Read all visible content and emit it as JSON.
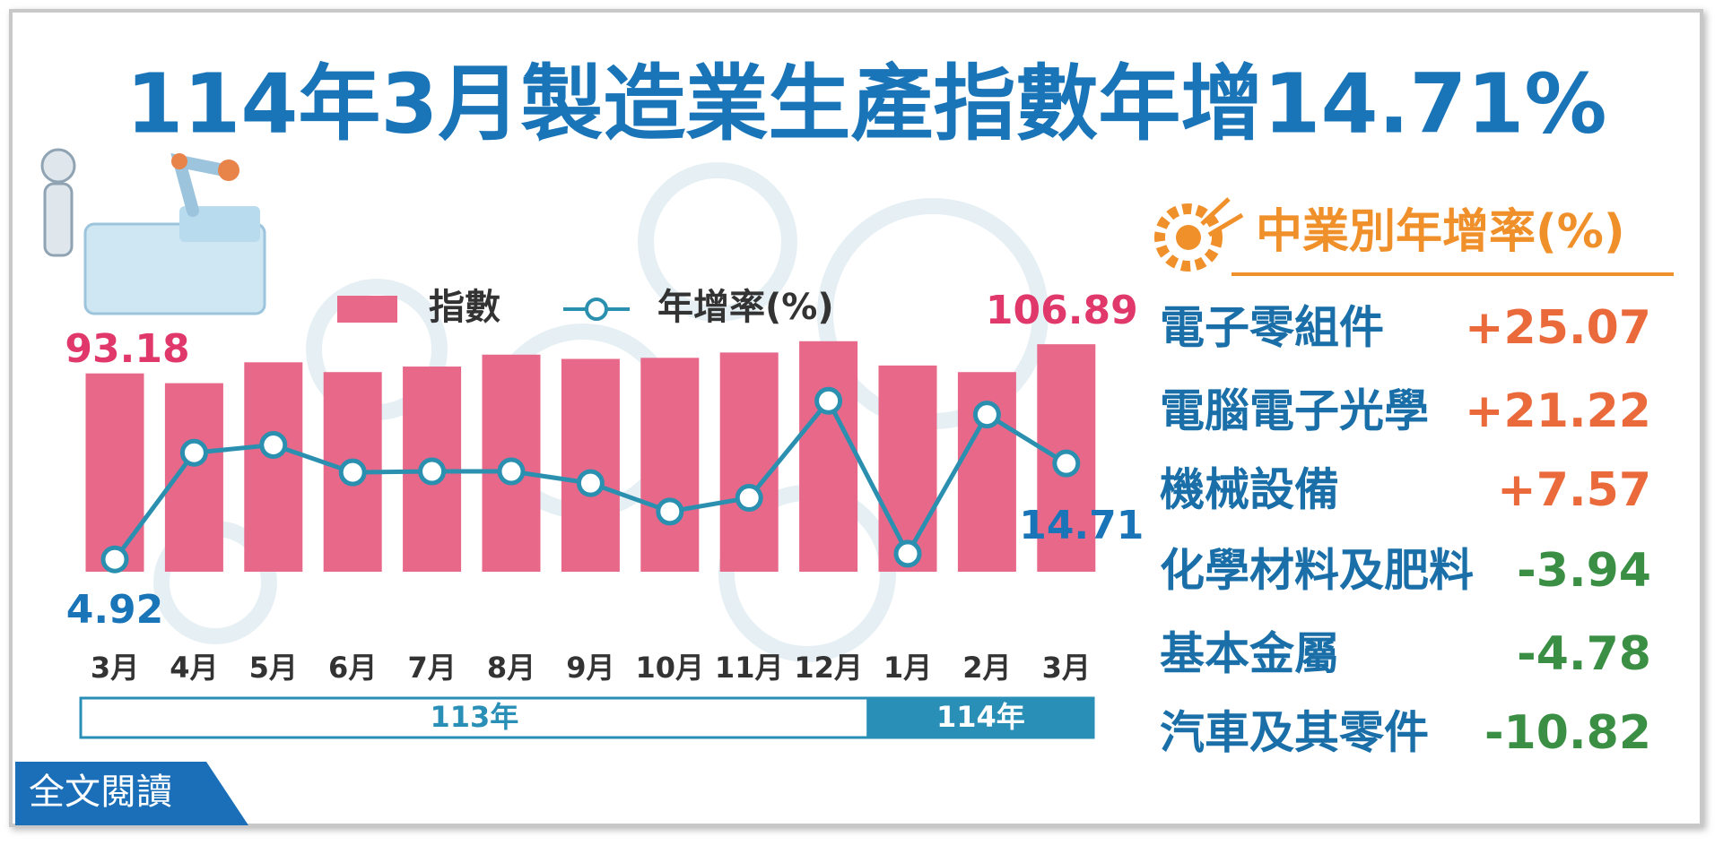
{
  "title": "114年3月製造業生產指數年增14.71%",
  "button": "全文閱讀",
  "chart_data": [
    {
      "type": "bar-line",
      "groups": [
        {
          "label": "113年",
          "categories": [
            "3月",
            "4月",
            "5月",
            "6月",
            "7月",
            "8月",
            "9月",
            "10月",
            "11月",
            "12月"
          ]
        },
        {
          "label": "114年",
          "categories": [
            "1月",
            "2月",
            "3月"
          ]
        }
      ],
      "series": [
        {
          "name": "指數",
          "color": "#e8688a",
          "values": [
            93.18,
            88.6,
            98.4,
            93.8,
            96.4,
            102.0,
            100.0,
            100.5,
            103.0,
            108.3,
            96.9,
            93.8,
            106.89
          ]
        },
        {
          "name": "年增率(%)",
          "color": "#2b8fb0",
          "axis": "y2",
          "values": [
            4.92,
            15.8,
            16.6,
            13.8,
            13.9,
            13.9,
            12.7,
            9.8,
            11.2,
            21.1,
            5.5,
            19.7,
            14.71
          ]
        }
      ],
      "ylim": [
        0,
        120
      ],
      "y2lim": [
        0,
        30
      ]
    },
    {
      "type": "table",
      "title": "中業別年增率(%)",
      "categories": [
        "電子零組件",
        "電腦電子光學",
        "機械設備",
        "化學材料及肥料",
        "基本金屬",
        "汽車及其零件"
      ],
      "values": [
        25.07,
        21.22,
        7.57,
        -3.94,
        -4.78,
        -10.82
      ],
      "value_labels": [
        "+25.07",
        "+21.22",
        "+7.57",
        "-3.94",
        "-4.78",
        "-10.82"
      ],
      "positive_color": "#ea6a3c",
      "negative_color": "#3a8f45"
    }
  ]
}
